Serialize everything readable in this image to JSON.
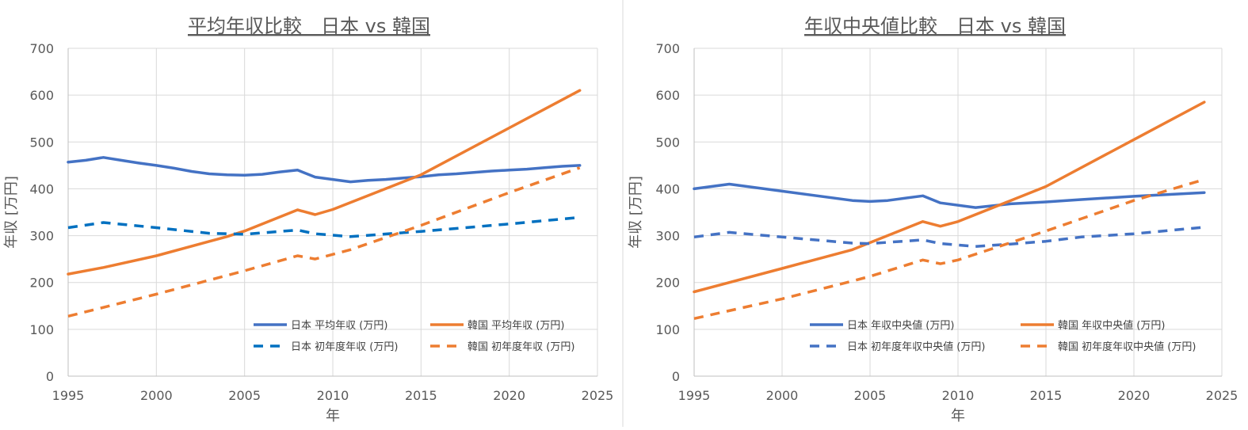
{
  "chart_data": [
    {
      "type": "line",
      "title": "平均年収比較　日本 vs 韓国",
      "xlabel": "年",
      "ylabel": "年収 [万円]",
      "xlim": [
        1995,
        2025
      ],
      "ylim": [
        0,
        700
      ],
      "xticks": [
        1995,
        2000,
        2005,
        2010,
        2015,
        2020,
        2025
      ],
      "yticks": [
        0,
        100,
        200,
        300,
        400,
        500,
        600,
        700
      ],
      "grid": true,
      "legend_position": "bottom-right",
      "series": [
        {
          "name": "日本 平均年収 (万円)",
          "color": "#4472c4",
          "dash": "solid",
          "x": [
            1995,
            1996,
            1997,
            1998,
            1999,
            2000,
            2001,
            2002,
            2003,
            2004,
            2005,
            2006,
            2007,
            2008,
            2009,
            2010,
            2011,
            2012,
            2013,
            2014,
            2015,
            2016,
            2017,
            2018,
            2019,
            2020,
            2021,
            2022,
            2023,
            2024
          ],
          "y": [
            457,
            461,
            467,
            461,
            455,
            450,
            444,
            437,
            432,
            430,
            429,
            431,
            436,
            440,
            425,
            420,
            415,
            418,
            420,
            423,
            426,
            430,
            432,
            435,
            438,
            440,
            442,
            445,
            448,
            450
          ]
        },
        {
          "name": "韓国 平均年収 (万円)",
          "color": "#ed7d31",
          "dash": "solid",
          "x": [
            1995,
            1997,
            2000,
            2004,
            2005,
            2008,
            2009,
            2010,
            2015,
            2020,
            2024
          ],
          "y": [
            218,
            232,
            257,
            298,
            310,
            355,
            345,
            356,
            430,
            530,
            610
          ]
        },
        {
          "name": "日本 初年度年収 (万円)",
          "color": "#0070c0",
          "dash": "dash",
          "x": [
            1995,
            1997,
            2000,
            2003,
            2005,
            2008,
            2009,
            2011,
            2015,
            2020,
            2024
          ],
          "y": [
            317,
            328,
            317,
            305,
            303,
            312,
            304,
            298,
            309,
            325,
            339
          ]
        },
        {
          "name": "韓国 初年度年収 (万円)",
          "color": "#ed7d31",
          "dash": "dash",
          "x": [
            1995,
            2000,
            2005,
            2008,
            2009,
            2011,
            2015,
            2020,
            2024
          ],
          "y": [
            128,
            175,
            225,
            257,
            250,
            270,
            322,
            392,
            445
          ]
        }
      ]
    },
    {
      "type": "line",
      "title": "年収中央値比較　日本 vs 韓国",
      "xlabel": "年",
      "ylabel": "年収 [万円]",
      "xlim": [
        1995,
        2025
      ],
      "ylim": [
        0,
        700
      ],
      "xticks": [
        1995,
        2000,
        2005,
        2010,
        2015,
        2020,
        2025
      ],
      "yticks": [
        0,
        100,
        200,
        300,
        400,
        500,
        600,
        700
      ],
      "grid": true,
      "legend_position": "bottom-right",
      "series": [
        {
          "name": "日本 年収中央値 (万円)",
          "color": "#4472c4",
          "dash": "solid",
          "x": [
            1995,
            1997,
            2000,
            2004,
            2005,
            2006,
            2008,
            2009,
            2011,
            2013,
            2015,
            2017,
            2020,
            2024
          ],
          "y": [
            400,
            410,
            395,
            375,
            373,
            375,
            385,
            370,
            360,
            368,
            372,
            377,
            384,
            392
          ]
        },
        {
          "name": "韓国 年収中央値 (万円)",
          "color": "#ed7d31",
          "dash": "solid",
          "x": [
            1995,
            2000,
            2004,
            2005,
            2008,
            2009,
            2010,
            2015,
            2020,
            2024
          ],
          "y": [
            180,
            230,
            270,
            285,
            330,
            320,
            330,
            405,
            505,
            585
          ]
        },
        {
          "name": "日本 初年度年収中央値 (万円)",
          "color": "#4472c4",
          "dash": "dash",
          "x": [
            1995,
            1997,
            2000,
            2004,
            2005,
            2008,
            2009,
            2011,
            2013,
            2015,
            2017,
            2020,
            2024
          ],
          "y": [
            297,
            307,
            297,
            284,
            283,
            291,
            283,
            277,
            282,
            288,
            297,
            304,
            318
          ]
        },
        {
          "name": "韓国 初年度年収中央値 (万円)",
          "color": "#ed7d31",
          "dash": "dash",
          "x": [
            1995,
            2000,
            2004,
            2005,
            2008,
            2009,
            2010,
            2015,
            2020,
            2024
          ],
          "y": [
            123,
            165,
            203,
            213,
            248,
            240,
            248,
            310,
            375,
            420
          ]
        }
      ]
    }
  ]
}
